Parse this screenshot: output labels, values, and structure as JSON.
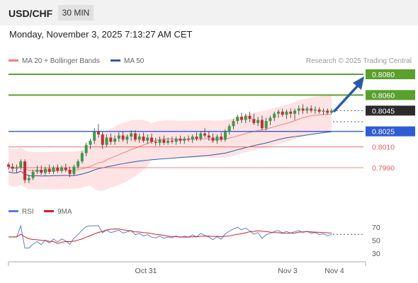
{
  "header": {
    "symbol": "USD/CHF",
    "timeframe": "30 MIN"
  },
  "datetime": "Monday, November 3, 2025 7:13:27 AM CET",
  "legend": {
    "bb_label": "MA 20 + Bollinger Bands",
    "ma50_label": "MA 50",
    "rsi_label": "RSI",
    "rsi_ma_label": "9MA",
    "credit": "Research © 2025 Trading Central"
  },
  "colors": {
    "bollinger": "#f08080",
    "bollinger_fill": "#fde3e3",
    "ma50": "#2f5aa8",
    "resistance": "#5aa02c",
    "support_blue": "#2f5bd6",
    "support_red": "#e06060",
    "arrow": "#2a5aa8",
    "bull": "#3a9a4a",
    "bear": "#c03030",
    "rsi": "#5a7fd8",
    "rsi_ma": "#d02020"
  },
  "chart_data": {
    "type": "candlestick",
    "timeframe": "30 MIN",
    "x_ticks": [
      "Oct 31",
      "Nov 3",
      "Nov 4"
    ],
    "levels": [
      {
        "value": 0.808,
        "label": "0.8080",
        "kind": "resistance"
      },
      {
        "value": 0.806,
        "label": "0.8060",
        "kind": "resistance"
      },
      {
        "value": 0.8045,
        "label": "0.8045",
        "kind": "last"
      },
      {
        "value": 0.8025,
        "label": "0.8025",
        "kind": "pivot"
      },
      {
        "value": 0.801,
        "label": "0.8010",
        "kind": "support"
      },
      {
        "value": 0.799,
        "label": "0.7990",
        "kind": "support"
      }
    ],
    "candles": [
      [
        0.7993,
        0.7995,
        0.7988,
        0.7991
      ],
      [
        0.7991,
        0.7994,
        0.7986,
        0.7989
      ],
      [
        0.7989,
        0.7993,
        0.7985,
        0.799
      ],
      [
        0.799,
        0.7998,
        0.7988,
        0.7996
      ],
      [
        0.7996,
        0.7998,
        0.7975,
        0.7978
      ],
      [
        0.7978,
        0.7983,
        0.7975,
        0.798
      ],
      [
        0.798,
        0.7988,
        0.7978,
        0.7986
      ],
      [
        0.7986,
        0.7992,
        0.7984,
        0.7988
      ],
      [
        0.7988,
        0.7992,
        0.7983,
        0.7985
      ],
      [
        0.7985,
        0.7991,
        0.7983,
        0.7989
      ],
      [
        0.7989,
        0.7993,
        0.7984,
        0.7986
      ],
      [
        0.7986,
        0.7992,
        0.7984,
        0.799
      ],
      [
        0.799,
        0.7993,
        0.7985,
        0.7987
      ],
      [
        0.7987,
        0.7992,
        0.7985,
        0.799
      ],
      [
        0.799,
        0.7994,
        0.7986,
        0.7988
      ],
      [
        0.7988,
        0.7991,
        0.7981,
        0.7984
      ],
      [
        0.7984,
        0.7993,
        0.7982,
        0.7991
      ],
      [
        0.7991,
        0.7998,
        0.7989,
        0.7996
      ],
      [
        0.7996,
        0.8006,
        0.7994,
        0.8004
      ],
      [
        0.8004,
        0.8014,
        0.8001,
        0.8012
      ],
      [
        0.8012,
        0.8018,
        0.8008,
        0.8016
      ],
      [
        0.8016,
        0.8028,
        0.8013,
        0.8025
      ],
      [
        0.8025,
        0.8032,
        0.8019,
        0.8022
      ],
      [
        0.8022,
        0.8025,
        0.8008,
        0.8012
      ],
      [
        0.8012,
        0.8022,
        0.801,
        0.8019
      ],
      [
        0.8019,
        0.8023,
        0.8012,
        0.8015
      ],
      [
        0.8015,
        0.8021,
        0.8012,
        0.8018
      ],
      [
        0.8018,
        0.8024,
        0.8015,
        0.8021
      ],
      [
        0.8021,
        0.8025,
        0.8015,
        0.8017
      ],
      [
        0.8017,
        0.8022,
        0.8013,
        0.802
      ],
      [
        0.802,
        0.8026,
        0.8016,
        0.8023
      ],
      [
        0.8023,
        0.8026,
        0.8015,
        0.8017
      ],
      [
        0.8017,
        0.8023,
        0.8014,
        0.802
      ],
      [
        0.802,
        0.8024,
        0.8014,
        0.8016
      ],
      [
        0.8016,
        0.8022,
        0.8013,
        0.8019
      ],
      [
        0.8019,
        0.8023,
        0.8013,
        0.8015
      ],
      [
        0.8015,
        0.8019,
        0.8011,
        0.8014
      ],
      [
        0.8014,
        0.802,
        0.8011,
        0.8017
      ],
      [
        0.8017,
        0.8021,
        0.8012,
        0.8014
      ],
      [
        0.8014,
        0.8019,
        0.8012,
        0.8016
      ],
      [
        0.8016,
        0.802,
        0.8013,
        0.8015
      ],
      [
        0.8015,
        0.802,
        0.8012,
        0.8018
      ],
      [
        0.8018,
        0.8021,
        0.8013,
        0.8016
      ],
      [
        0.8016,
        0.802,
        0.8013,
        0.8018
      ],
      [
        0.8018,
        0.8021,
        0.8015,
        0.8017
      ],
      [
        0.8017,
        0.8022,
        0.8014,
        0.802
      ],
      [
        0.802,
        0.8024,
        0.8016,
        0.8018
      ],
      [
        0.8018,
        0.8025,
        0.8016,
        0.8023
      ],
      [
        0.8023,
        0.8028,
        0.8019,
        0.8021
      ],
      [
        0.8021,
        0.8025,
        0.8016,
        0.8019
      ],
      [
        0.8019,
        0.8023,
        0.8014,
        0.8016
      ],
      [
        0.8016,
        0.8022,
        0.8013,
        0.802
      ],
      [
        0.802,
        0.8024,
        0.8015,
        0.8017
      ],
      [
        0.8017,
        0.8027,
        0.8015,
        0.8025
      ],
      [
        0.8025,
        0.8032,
        0.8022,
        0.803
      ],
      [
        0.803,
        0.8037,
        0.8027,
        0.8035
      ],
      [
        0.8035,
        0.8041,
        0.8032,
        0.8039
      ],
      [
        0.8039,
        0.8043,
        0.8033,
        0.8036
      ],
      [
        0.8036,
        0.8042,
        0.8033,
        0.804
      ],
      [
        0.804,
        0.8044,
        0.8034,
        0.8037
      ],
      [
        0.8037,
        0.8042,
        0.8031,
        0.8033
      ],
      [
        0.8033,
        0.8039,
        0.803,
        0.8036
      ],
      [
        0.8036,
        0.804,
        0.8026,
        0.8028
      ],
      [
        0.8028,
        0.8038,
        0.8026,
        0.8035
      ],
      [
        0.8035,
        0.804,
        0.8031,
        0.8038
      ],
      [
        0.8038,
        0.8044,
        0.8035,
        0.8042
      ],
      [
        0.8042,
        0.8046,
        0.8038,
        0.8044
      ],
      [
        0.8044,
        0.8047,
        0.8039,
        0.8041
      ],
      [
        0.8041,
        0.8046,
        0.8037,
        0.8044
      ],
      [
        0.8044,
        0.8047,
        0.8038,
        0.8042
      ],
      [
        0.8042,
        0.8047,
        0.8036,
        0.8045
      ],
      [
        0.8045,
        0.805,
        0.8041,
        0.8047
      ],
      [
        0.8047,
        0.8051,
        0.8042,
        0.8045
      ],
      [
        0.8045,
        0.8049,
        0.8042,
        0.8047
      ],
      [
        0.8047,
        0.805,
        0.8043,
        0.8045
      ],
      [
        0.8045,
        0.8049,
        0.8042,
        0.8046
      ],
      [
        0.8046,
        0.8048,
        0.8042,
        0.8044
      ],
      [
        0.8044,
        0.8047,
        0.8041,
        0.8045
      ],
      [
        0.8045,
        0.8047,
        0.8041,
        0.8043
      ],
      [
        0.8043,
        0.8047,
        0.8042,
        0.8045
      ]
    ],
    "rsi_axis": {
      "ticks": [
        70,
        50,
        30
      ]
    }
  }
}
